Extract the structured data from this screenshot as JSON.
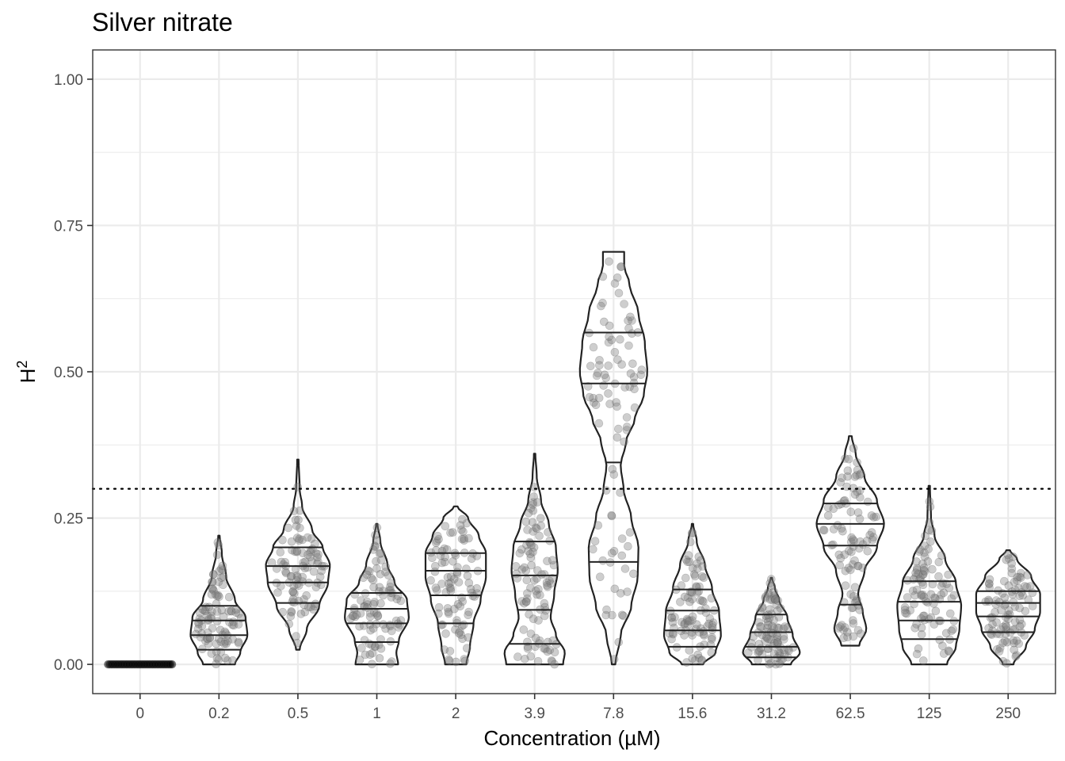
{
  "chart_data": {
    "type": "violin",
    "title": "Silver nitrate",
    "xlabel": "Concentration (µM)",
    "ylabel_base": "H",
    "ylabel_sup": "2",
    "ylim": [
      -0.05,
      1.05
    ],
    "yticks": [
      0.0,
      0.25,
      0.5,
      0.75,
      1.0
    ],
    "ytick_labels": [
      "0.00",
      "0.25",
      "0.50",
      "0.75",
      "1.00"
    ],
    "grid": true,
    "threshold": 0.3,
    "categories": [
      "0",
      "0.2",
      "0.5",
      "1",
      "2",
      "3.9",
      "7.8",
      "15.6",
      "31.2",
      "62.5",
      "125",
      "250"
    ],
    "groups": [
      {
        "category": "0",
        "min": 0.0,
        "max": 0.0,
        "quantiles": [],
        "profile": []
      },
      {
        "category": "0.2",
        "min": 0.0,
        "max": 0.22,
        "quantiles": [
          0.025,
          0.05,
          0.075,
          0.1
        ],
        "profile": [
          [
            0.0,
            0.45
          ],
          [
            0.02,
            0.6
          ],
          [
            0.05,
            0.8
          ],
          [
            0.08,
            0.75
          ],
          [
            0.11,
            0.45
          ],
          [
            0.15,
            0.2
          ],
          [
            0.19,
            0.08
          ],
          [
            0.22,
            0.02
          ]
        ]
      },
      {
        "category": "0.5",
        "min": 0.025,
        "max": 0.35,
        "quantiles": [
          0.105,
          0.14,
          0.168,
          0.2
        ],
        "profile": [
          [
            0.025,
            0.05
          ],
          [
            0.06,
            0.25
          ],
          [
            0.1,
            0.6
          ],
          [
            0.14,
            0.85
          ],
          [
            0.17,
            0.9
          ],
          [
            0.2,
            0.7
          ],
          [
            0.23,
            0.4
          ],
          [
            0.27,
            0.12
          ],
          [
            0.3,
            0.05
          ],
          [
            0.35,
            0.02
          ]
        ]
      },
      {
        "category": "1",
        "min": 0.0,
        "max": 0.24,
        "quantiles": [
          0.038,
          0.07,
          0.095,
          0.122
        ],
        "profile": [
          [
            0.0,
            0.6
          ],
          [
            0.02,
            0.55
          ],
          [
            0.04,
            0.62
          ],
          [
            0.08,
            0.9
          ],
          [
            0.11,
            0.85
          ],
          [
            0.14,
            0.5
          ],
          [
            0.17,
            0.3
          ],
          [
            0.21,
            0.1
          ],
          [
            0.24,
            0.02
          ]
        ]
      },
      {
        "category": "2",
        "min": 0.0,
        "max": 0.27,
        "quantiles": [
          0.07,
          0.118,
          0.16,
          0.19
        ],
        "profile": [
          [
            0.0,
            0.3
          ],
          [
            0.03,
            0.4
          ],
          [
            0.07,
            0.5
          ],
          [
            0.11,
            0.7
          ],
          [
            0.15,
            0.85
          ],
          [
            0.19,
            0.85
          ],
          [
            0.22,
            0.65
          ],
          [
            0.25,
            0.35
          ],
          [
            0.27,
            0.05
          ]
        ]
      },
      {
        "category": "3.9",
        "min": 0.0,
        "max": 0.36,
        "quantiles": [
          0.035,
          0.093,
          0.152,
          0.21
        ],
        "profile": [
          [
            0.0,
            0.8
          ],
          [
            0.02,
            0.85
          ],
          [
            0.05,
            0.6
          ],
          [
            0.08,
            0.45
          ],
          [
            0.12,
            0.55
          ],
          [
            0.16,
            0.65
          ],
          [
            0.2,
            0.6
          ],
          [
            0.24,
            0.4
          ],
          [
            0.28,
            0.18
          ],
          [
            0.32,
            0.06
          ],
          [
            0.36,
            0.02
          ]
        ]
      },
      {
        "category": "7.8",
        "min": 0.0,
        "max": 0.705,
        "quantiles": [
          0.175,
          0.345,
          0.48,
          0.567
        ],
        "profile": [
          [
            0.0,
            0.05
          ],
          [
            0.05,
            0.2
          ],
          [
            0.1,
            0.5
          ],
          [
            0.15,
            0.68
          ],
          [
            0.2,
            0.7
          ],
          [
            0.25,
            0.5
          ],
          [
            0.3,
            0.28
          ],
          [
            0.34,
            0.2
          ],
          [
            0.38,
            0.35
          ],
          [
            0.42,
            0.6
          ],
          [
            0.46,
            0.85
          ],
          [
            0.5,
            0.95
          ],
          [
            0.55,
            0.88
          ],
          [
            0.6,
            0.7
          ],
          [
            0.65,
            0.45
          ],
          [
            0.68,
            0.3
          ],
          [
            0.705,
            0.3
          ]
        ]
      },
      {
        "category": "15.6",
        "min": 0.0,
        "max": 0.24,
        "quantiles": [
          0.03,
          0.058,
          0.092,
          0.128
        ],
        "profile": [
          [
            0.0,
            0.3
          ],
          [
            0.02,
            0.65
          ],
          [
            0.05,
            0.8
          ],
          [
            0.09,
            0.75
          ],
          [
            0.13,
            0.55
          ],
          [
            0.17,
            0.35
          ],
          [
            0.21,
            0.12
          ],
          [
            0.24,
            0.02
          ]
        ]
      },
      {
        "category": "31.2",
        "min": 0.0,
        "max": 0.148,
        "quantiles": [
          0.012,
          0.03,
          0.055,
          0.085
        ],
        "profile": [
          [
            0.0,
            0.55
          ],
          [
            0.02,
            0.8
          ],
          [
            0.05,
            0.6
          ],
          [
            0.08,
            0.45
          ],
          [
            0.11,
            0.22
          ],
          [
            0.13,
            0.1
          ],
          [
            0.148,
            0.02
          ]
        ]
      },
      {
        "category": "62.5",
        "min": 0.032,
        "max": 0.39,
        "quantiles": [
          0.102,
          0.203,
          0.24,
          0.275
        ],
        "profile": [
          [
            0.032,
            0.25
          ],
          [
            0.06,
            0.45
          ],
          [
            0.09,
            0.35
          ],
          [
            0.12,
            0.22
          ],
          [
            0.16,
            0.4
          ],
          [
            0.2,
            0.75
          ],
          [
            0.24,
            0.95
          ],
          [
            0.28,
            0.75
          ],
          [
            0.32,
            0.4
          ],
          [
            0.36,
            0.15
          ],
          [
            0.39,
            0.04
          ]
        ]
      },
      {
        "category": "125",
        "min": 0.0,
        "max": 0.305,
        "quantiles": [
          0.043,
          0.075,
          0.107,
          0.142
        ],
        "profile": [
          [
            0.0,
            0.5
          ],
          [
            0.03,
            0.75
          ],
          [
            0.06,
            0.85
          ],
          [
            0.1,
            0.9
          ],
          [
            0.14,
            0.75
          ],
          [
            0.18,
            0.45
          ],
          [
            0.22,
            0.15
          ],
          [
            0.25,
            0.05
          ],
          [
            0.305,
            0.02
          ]
        ]
      },
      {
        "category": "250",
        "min": 0.0,
        "max": 0.195,
        "quantiles": [
          0.055,
          0.082,
          0.105,
          0.125
        ],
        "profile": [
          [
            0.0,
            0.15
          ],
          [
            0.03,
            0.5
          ],
          [
            0.06,
            0.75
          ],
          [
            0.09,
            0.9
          ],
          [
            0.12,
            0.9
          ],
          [
            0.15,
            0.65
          ],
          [
            0.18,
            0.25
          ],
          [
            0.195,
            0.05
          ]
        ]
      }
    ]
  }
}
